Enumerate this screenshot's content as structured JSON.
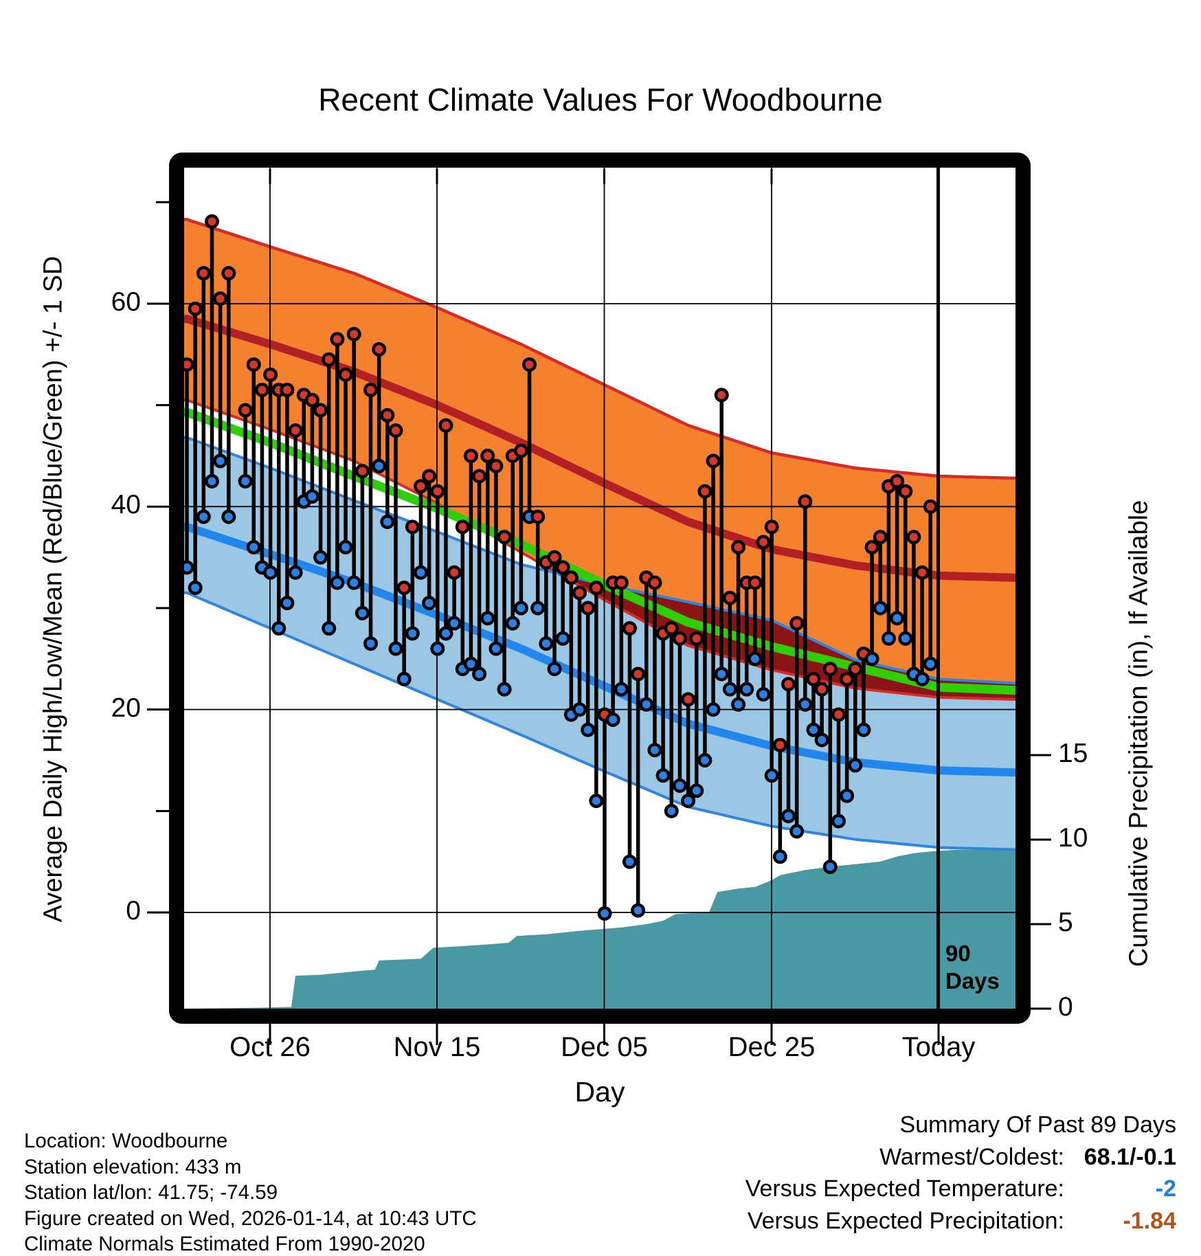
{
  "title": "Recent Climate Values For Woodbourne",
  "axes": {
    "x_label": "Day",
    "y_left_label": "Average Daily High/Low/Mean (Red/Blue/Green) +/- 1 SD",
    "y_right_label": "Cumulative Precipitation (in), If Available",
    "x_tick_labels": [
      "Oct 26",
      "Nov 15",
      "Dec 05",
      "Dec 25",
      "Today"
    ],
    "y_left_ticks": [
      0,
      20,
      40,
      60
    ],
    "y_left_minor_ticks": [
      10,
      30,
      50,
      70
    ],
    "y_right_ticks": [
      0,
      5,
      10,
      15
    ]
  },
  "annotations": {
    "ninety_line_label_1": "90",
    "ninety_line_label_2": "Days"
  },
  "footer_left": {
    "lines": [
      "Location: Woodbourne",
      "Station elevation: 433 m",
      "Station lat/lon: 41.75; -74.59",
      "Figure created on Wed, 2026-01-14, at 10:43 UTC",
      "Climate Normals Estimated From 1990-2020"
    ]
  },
  "summary": {
    "heading": "Summary Of Past 89 Days",
    "rows": [
      {
        "label": "Warmest/Coldest:",
        "value": "68.1/-0.1",
        "color": "#000000"
      },
      {
        "label": "Versus Expected Temperature:",
        "value": "-2",
        "color": "#1f7fe8"
      },
      {
        "label": "Versus Expected Precipitation:",
        "value": "-1.84",
        "color": "#b05418"
      }
    ]
  },
  "colors": {
    "high_band_fill": "#f5812e",
    "high_band_edge": "#d62b27",
    "high_mean_line": "#b22025",
    "band_overlap": "#8b1515",
    "mean_line": "#2fce06",
    "low_band_fill": "#9bc7e4",
    "low_band_edge": "#2e86e0",
    "low_mean_line": "#2187ec",
    "high_dot": "#d4372c",
    "low_dot": "#2b80e1",
    "precip_fill": "#4899a4",
    "stem": "#000000",
    "grid": "#000000"
  },
  "chart_data": {
    "type": "combo",
    "title": "Recent Climate Values For Woodbourne",
    "x_unit": "days since 2025-10-16 (index 0 = Oct 16, last index 89 = Jan 13; Today line = Jan 14, day 90)",
    "x_axis_ticks": [
      {
        "label": "Oct 26",
        "day": 10
      },
      {
        "label": "Nov 15",
        "day": 30
      },
      {
        "label": "Dec 05",
        "day": 50
      },
      {
        "label": "Dec 25",
        "day": 70
      },
      {
        "label": "Today",
        "day": 90
      }
    ],
    "temperature_axis": {
      "label": "Average Daily High/Low/Mean (Red/Blue/Green) +/- 1 SD",
      "ticks": [
        0,
        20,
        40,
        60
      ],
      "range_f": [
        -9.5,
        73.5
      ]
    },
    "precip_axis": {
      "label": "Cumulative Precipitation (in), If Available",
      "ticks": [
        0,
        5,
        10,
        15
      ]
    },
    "daily_temps": {
      "note": "highs/lows in deg F, one entry per day, null = missing day",
      "highs": [
        54,
        59.5,
        63,
        68.1,
        60.5,
        63,
        null,
        49.5,
        54,
        51.5,
        53,
        51.5,
        51.5,
        47.5,
        51,
        50.5,
        49.5,
        54.5,
        56.5,
        53,
        57,
        43.5,
        51.5,
        55.5,
        49,
        47.5,
        32,
        38,
        42,
        43,
        41.5,
        48,
        33.5,
        38,
        45,
        43,
        45,
        44,
        37,
        45,
        45.5,
        54,
        39,
        34.5,
        35,
        34,
        33,
        31.5,
        30,
        32,
        19.5,
        32.5,
        32.5,
        28,
        23.5,
        33,
        32.5,
        27.5,
        28,
        27,
        21,
        27,
        41.5,
        44.5,
        51,
        31,
        36,
        32.5,
        32.5,
        36.5,
        38,
        16.5,
        22.5,
        28.5,
        40.5,
        23,
        22,
        24,
        19.5,
        23,
        24,
        25.5,
        36,
        37,
        42,
        42.5,
        41.5,
        37,
        33.5,
        40
      ],
      "lows": [
        34,
        32,
        39,
        42.5,
        44.5,
        39,
        null,
        42.5,
        36,
        34,
        33.5,
        28,
        30.5,
        33.5,
        40.5,
        41,
        35,
        28,
        32.5,
        36,
        32.5,
        29.5,
        26.5,
        44,
        38.5,
        26,
        23,
        27.5,
        33.5,
        30.5,
        26,
        27.5,
        28.5,
        24,
        24.5,
        23.5,
        29,
        26,
        22,
        28.5,
        30,
        39,
        30,
        26.5,
        24,
        27,
        19.5,
        20,
        18,
        11,
        -0.1,
        19,
        22,
        5,
        0.2,
        20.5,
        16,
        13.5,
        10,
        12.5,
        11,
        12,
        15,
        20,
        23.5,
        22,
        20.5,
        22,
        25,
        21.5,
        13.5,
        5.5,
        9.5,
        8,
        20.5,
        18,
        17,
        4.5,
        9,
        11.5,
        14.5,
        18,
        25,
        30,
        27,
        29,
        27,
        23.5,
        23,
        24.5
      ]
    },
    "normals_deg_f": {
      "control_days": [
        0,
        10,
        20,
        30,
        40,
        50,
        60,
        70,
        80,
        90,
        99
      ],
      "high_plus_sd": [
        68.3,
        65.6,
        63,
        59.6,
        56,
        52,
        48,
        45.3,
        43.8,
        43,
        42.8
      ],
      "high_mean": [
        58.5,
        56,
        53.3,
        50,
        46.3,
        42.3,
        38.5,
        35.8,
        34.2,
        33.2,
        33
      ],
      "high_minus_sd": [
        50.5,
        47.6,
        44.5,
        40.3,
        35.5,
        30.8,
        26.3,
        23.9,
        22.1,
        21.2,
        21
      ],
      "mean": [
        49.3,
        46.3,
        43,
        39.8,
        36.3,
        32.3,
        28.6,
        26.2,
        24.2,
        22.2,
        21.9
      ],
      "low_plus_sd": [
        46.8,
        43.8,
        40.6,
        37.5,
        34.3,
        32.3,
        30.6,
        28.8,
        24.9,
        23,
        22.6
      ],
      "low_mean": [
        38,
        35.3,
        32.5,
        29.3,
        26,
        22.3,
        18.6,
        16.4,
        14.8,
        14,
        13.8
      ],
      "low_minus_sd": [
        31.5,
        28,
        24.5,
        21,
        17.5,
        13.9,
        10.4,
        8.5,
        7.2,
        6.4,
        6.2
      ]
    },
    "cumulative_precip_in": [
      [
        0,
        0
      ],
      [
        8,
        0.05
      ],
      [
        12.5,
        0.1
      ],
      [
        13,
        1.95
      ],
      [
        16,
        2.0
      ],
      [
        21,
        2.25
      ],
      [
        22.5,
        2.3
      ],
      [
        23,
        2.85
      ],
      [
        28,
        2.95
      ],
      [
        29.5,
        3.6
      ],
      [
        33,
        3.7
      ],
      [
        36,
        3.8
      ],
      [
        38.5,
        3.9
      ],
      [
        39.5,
        4.3
      ],
      [
        43,
        4.4
      ],
      [
        47,
        4.6
      ],
      [
        52,
        4.8
      ],
      [
        55,
        5.0
      ],
      [
        57,
        5.2
      ],
      [
        58.5,
        5.6
      ],
      [
        62.5,
        5.7
      ],
      [
        63.5,
        6.9
      ],
      [
        66,
        7.1
      ],
      [
        68,
        7.2
      ],
      [
        70,
        7.6
      ],
      [
        71,
        7.9
      ],
      [
        74,
        8.2
      ],
      [
        77,
        8.4
      ],
      [
        80,
        8.55
      ],
      [
        83,
        8.7
      ],
      [
        85,
        9.0
      ],
      [
        87,
        9.2
      ],
      [
        89,
        9.3
      ],
      [
        92,
        9.4
      ],
      [
        99,
        9.4
      ]
    ],
    "ninety_day_marker": {
      "day": 90,
      "label": "90 Days"
    },
    "summary": {
      "heading": "Summary Of Past 89 Days",
      "warmest": 68.1,
      "coldest": -0.1,
      "versus_expected_temperature": -2,
      "versus_expected_precipitation": -1.84
    }
  }
}
